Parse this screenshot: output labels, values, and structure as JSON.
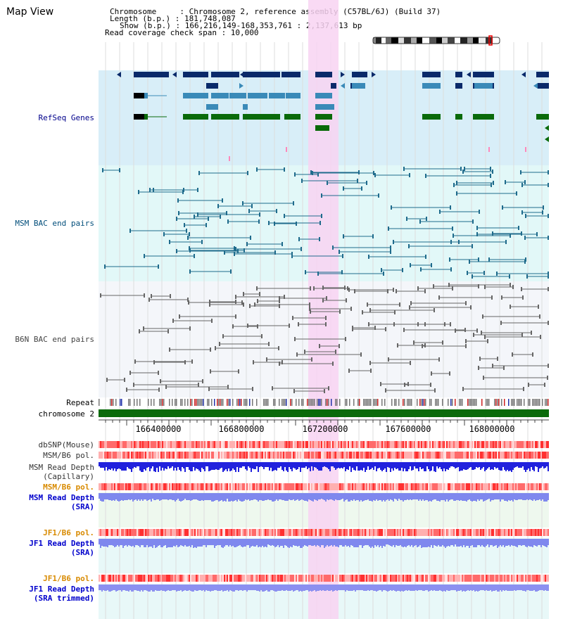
{
  "page": {
    "title": "Map View"
  },
  "header": {
    "chromosome": "Chromosome     : Chromosome 2, reference assembly (C57BL/6J) (Build 37)",
    "length": "Length (b.p.) : 181,748,087",
    "show": "Show (b.p.) : 166,216,149-168,353,761 : 2,137,613 bp",
    "coverage": "Read coverage check span : 10,000"
  },
  "tracks": {
    "refseq": "RefSeq Genes",
    "msm_bac": "MSM BAC end pairs",
    "b6n_bac": "B6N BAC end pairs",
    "repeat": "Repeat",
    "chromosome": "chromosome 2",
    "dbsnp": "dbSNP(Mouse)",
    "msm_pol1": "MSM/B6 pol.",
    "msm_depth_cap_1": "MSM Read Depth",
    "msm_depth_cap_2": "(Capillary)",
    "msm_pol2": "MSM/B6 pol.",
    "msm_depth_sra_1": "MSM Read Depth",
    "msm_depth_sra_2": "(SRA)",
    "jf1_pol1": "JF1/B6 pol.",
    "jf1_depth_sra_1": "JF1 Read Depth",
    "jf1_depth_sra_2": "(SRA)",
    "jf1_pol2": "JF1/B6 pol.",
    "jf1_depth_trim_1": "JF1 Read Depth",
    "jf1_depth_trim_2": "(SRA trimmed)"
  },
  "axis": {
    "ticks": [
      "166400000",
      "166800000",
      "167200000",
      "167600000",
      "168000000"
    ]
  },
  "colors": {
    "refseq_bg": "#d8eef8",
    "msm_bg": "#e2f8f8",
    "b6n_bg": "#f4f6fa",
    "highlight": "#f8d4f2",
    "gene_dark": "#0a2a6a",
    "gene_mid": "#3a8ab8",
    "gene_green": "#0a6a0a",
    "chrom_green": "#0a6a0a",
    "label_navy": "#00008b",
    "label_teal": "#004d7a",
    "label_gray": "#444444",
    "label_orange": "#d88a00",
    "label_blue": "#0000cc"
  }
}
